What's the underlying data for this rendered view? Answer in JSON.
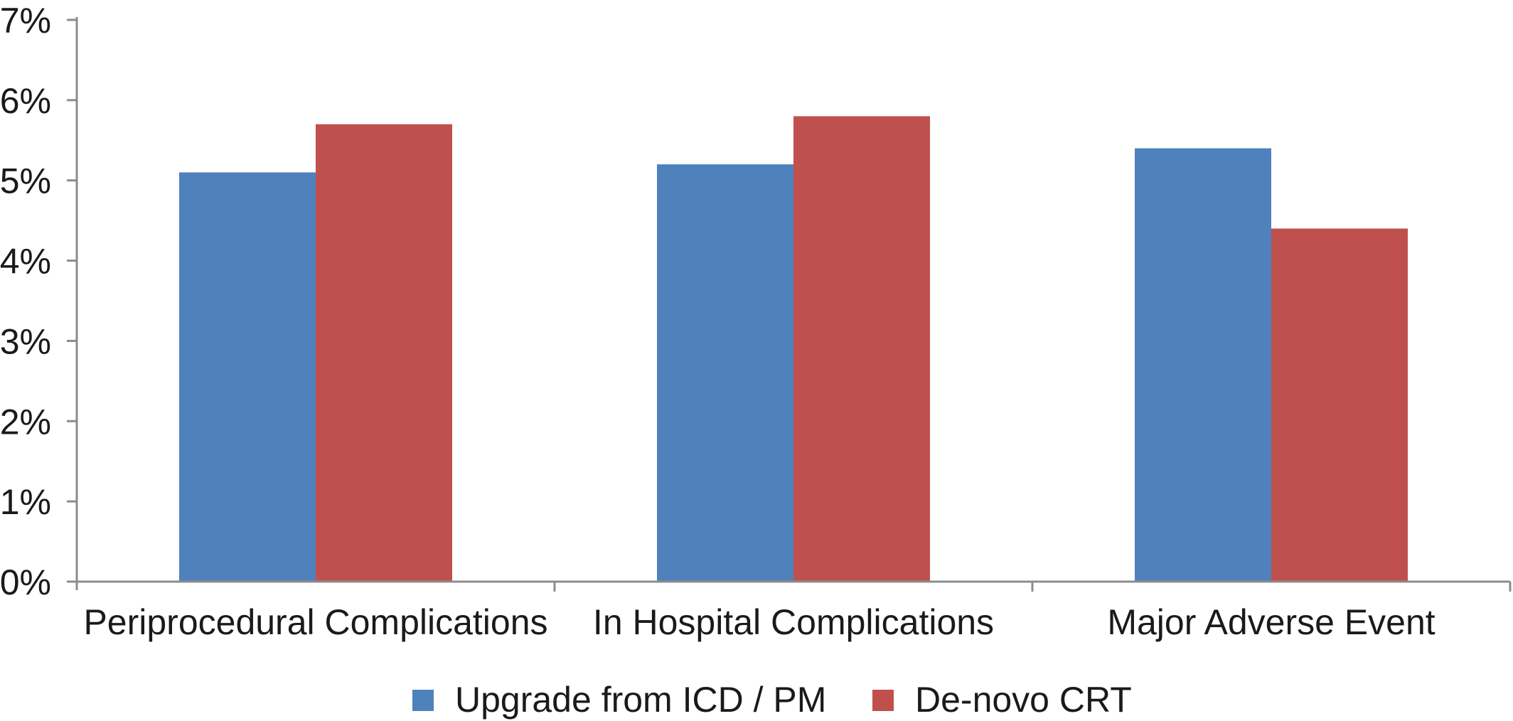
{
  "chart_data": {
    "type": "bar",
    "categories": [
      "Periprocedural Complications",
      "In Hospital Complications",
      "Major Adverse Event"
    ],
    "series": [
      {
        "name": "Upgrade from ICD / PM",
        "values": [
          5.1,
          5.2,
          5.4
        ],
        "color": "#4f81bd"
      },
      {
        "name": "De-novo CRT",
        "values": [
          5.7,
          5.8,
          4.4
        ],
        "color": "#c0504d"
      }
    ],
    "y_ticks": [
      "0%",
      "1%",
      "2%",
      "3%",
      "4%",
      "5%",
      "6%",
      "7%"
    ],
    "ylim": [
      0,
      7
    ],
    "y_unit": "percent",
    "grid": false,
    "legend_position": "bottom"
  }
}
